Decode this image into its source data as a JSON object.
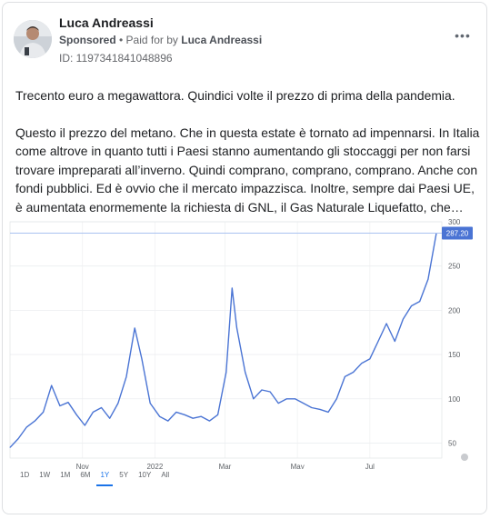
{
  "post": {
    "author": "Luca Andreassi",
    "sponsored": "Sponsored",
    "separator": " • ",
    "paid_for_prefix": "Paid for by ",
    "paid_for_name": "Luca Andreassi",
    "id_label": "ID: 1197341841048896",
    "more_label": "•••",
    "paragraph1": "Trecento euro a megawattora. Quindici volte il prezzo di prima della pandemia.",
    "paragraph2": "Questo il prezzo del metano. Che in questa estate è tornato ad impennarsi. In Italia come altrove in quanto tutti i Paesi stanno aumentando gli stoccaggi per non farsi trovare impreparati all’inverno. Quindi comprano, comprano, comprano. Anche con fondi pubblici. Ed è ovvio che il mercato impazzisca. Inoltre, sempre dai Paesi UE, è aumentata enormemente la richiesta di GNL, il Gas Naturale Liquefatto, che…"
  },
  "chart_tabs": [
    "1D",
    "1W",
    "1M",
    "6M",
    "1Y",
    "5Y",
    "10Y",
    "All"
  ],
  "chart_active_tab": "1Y",
  "chart_data": {
    "type": "line",
    "xlabels": [
      "Nov",
      "2022",
      "Mar",
      "May",
      "Jul"
    ],
    "yticks": [
      50,
      100,
      150,
      200,
      250,
      300
    ],
    "ylim": [
      33,
      300
    ],
    "current_value_label": "287.20",
    "current_value": 287.2,
    "line_color": "#4a74d4",
    "series": [
      {
        "x": [
          "2021-09-01",
          "2021-09-08",
          "2021-09-15",
          "2021-09-22",
          "2021-09-29",
          "2021-10-06",
          "2021-10-13",
          "2021-10-20",
          "2021-10-27",
          "2021-11-03",
          "2021-11-10",
          "2021-11-17",
          "2021-11-24",
          "2021-12-01",
          "2021-12-08",
          "2021-12-15",
          "2021-12-21",
          "2021-12-28",
          "2022-01-05",
          "2022-01-12",
          "2022-01-19",
          "2022-01-26",
          "2022-02-02",
          "2022-02-09",
          "2022-02-16",
          "2022-02-23",
          "2022-03-02",
          "2022-03-07",
          "2022-03-11",
          "2022-03-18",
          "2022-03-25",
          "2022-04-01",
          "2022-04-08",
          "2022-04-15",
          "2022-04-22",
          "2022-04-29",
          "2022-05-06",
          "2022-05-13",
          "2022-05-20",
          "2022-05-27",
          "2022-06-03",
          "2022-06-10",
          "2022-06-17",
          "2022-06-24",
          "2022-07-01",
          "2022-07-08",
          "2022-07-15",
          "2022-07-22",
          "2022-07-29",
          "2022-08-05",
          "2022-08-12",
          "2022-08-19",
          "2022-08-26"
        ],
        "y": [
          45,
          55,
          68,
          75,
          85,
          115,
          92,
          96,
          82,
          70,
          85,
          90,
          78,
          95,
          125,
          180,
          145,
          95,
          80,
          75,
          85,
          82,
          78,
          80,
          75,
          82,
          130,
          225,
          180,
          130,
          100,
          110,
          108,
          95,
          100,
          100,
          95,
          90,
          88,
          85,
          100,
          125,
          130,
          140,
          145,
          165,
          185,
          165,
          190,
          205,
          210,
          235,
          287.2
        ]
      }
    ]
  }
}
